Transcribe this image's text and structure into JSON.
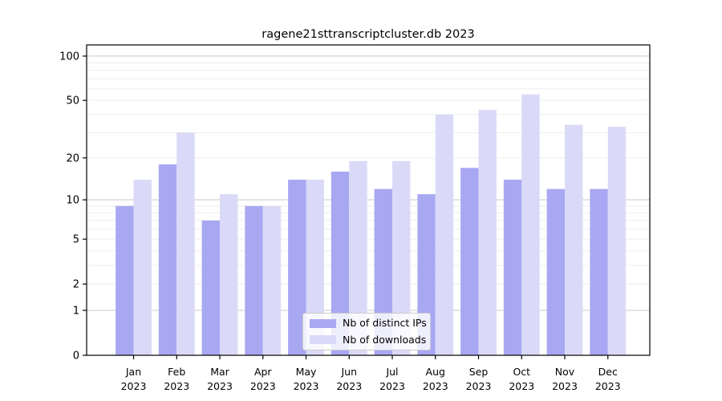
{
  "chart_data": {
    "type": "bar",
    "title": "ragene21sttranscriptcluster.db 2023",
    "xlabel": "",
    "ylabel": "",
    "y_scale": "log1p",
    "ylim": [
      0,
      119
    ],
    "yticks": [
      0,
      1,
      2,
      5,
      10,
      20,
      50,
      100
    ],
    "gridlines": {
      "major": [
        1,
        10,
        100
      ],
      "minor": [
        2,
        3,
        4,
        5,
        6,
        7,
        8,
        9,
        20,
        30,
        40,
        50,
        60,
        70,
        80,
        90
      ]
    },
    "grid_on": true,
    "legend_position": "inside-bottom-center",
    "categories": [
      "Jan 2023",
      "Feb 2023",
      "Mar 2023",
      "Apr 2023",
      "May 2023",
      "Jun 2023",
      "Jul 2023",
      "Aug 2023",
      "Sep 2023",
      "Oct 2023",
      "Nov 2023",
      "Dec 2023"
    ],
    "series": [
      {
        "name": "Nb of distinct IPs",
        "color": "#a8a8f2",
        "values": [
          9,
          18,
          7,
          9,
          14,
          16,
          12,
          11,
          17,
          14,
          12,
          12
        ]
      },
      {
        "name": "Nb of downloads",
        "color": "#dadaf8",
        "values": [
          14,
          30,
          11,
          9,
          14,
          19,
          19,
          40,
          43,
          55,
          34,
          33
        ]
      }
    ],
    "colors": {
      "major_grid": "#c9c9c9",
      "minor_grid": "#ededed",
      "axis": "#000000",
      "text": "#000000"
    }
  }
}
